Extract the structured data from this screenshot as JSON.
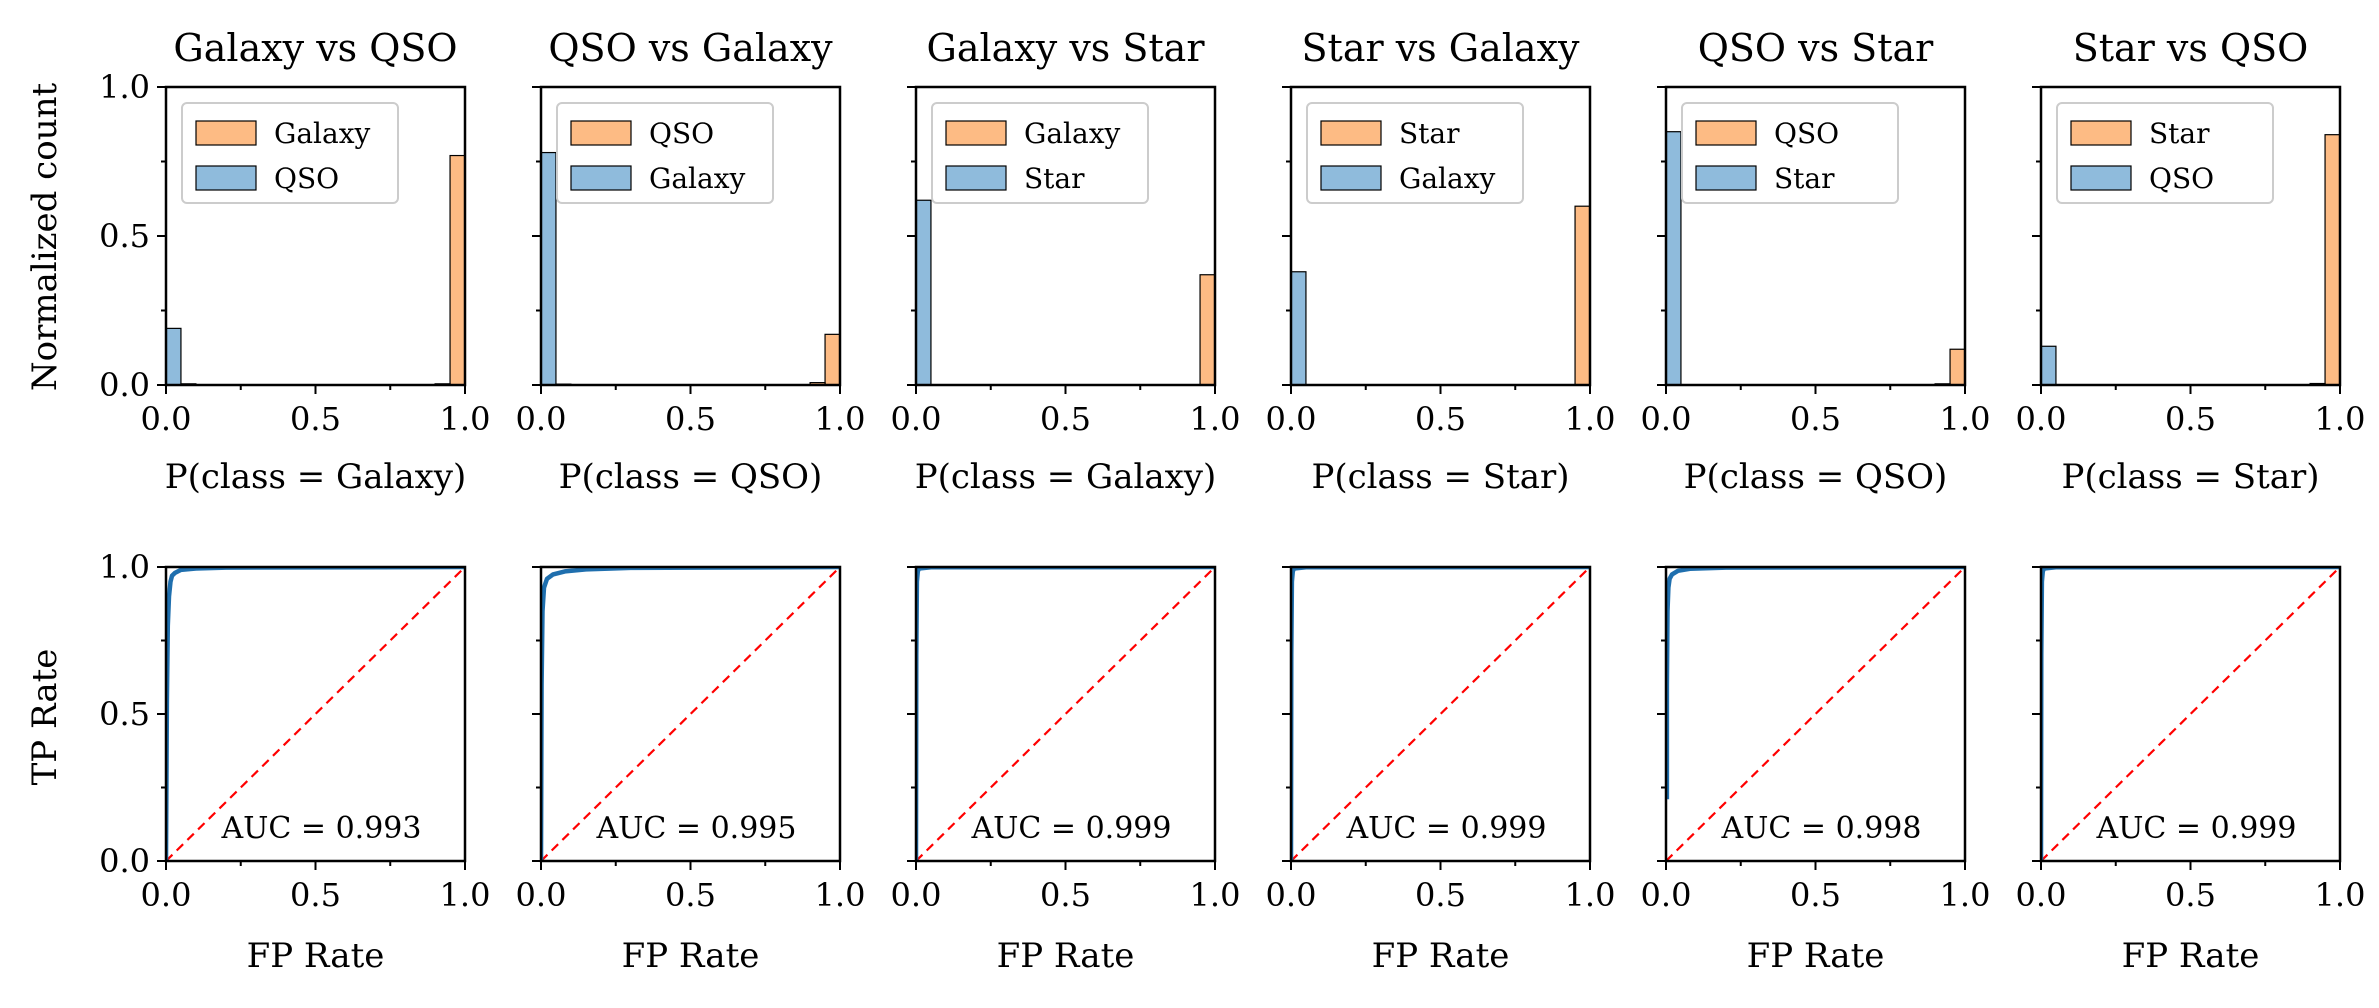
{
  "figure": {
    "colors": {
      "positive": "#fdbb84",
      "negative": "#8fbbdc",
      "roc": "#1f6fae",
      "diagonal": "#ff0000",
      "edge": "#000000"
    },
    "shared_labels": {
      "hist_ylabel": "Normalized count",
      "roc_ylabel": "TP Rate",
      "roc_xlabel": "FP Rate"
    }
  },
  "chart_data": [
    {
      "type": "bar",
      "title": "Galaxy vs QSO",
      "xlabel": "P(class = Galaxy)",
      "ylabel": "Normalized count",
      "xlim": [
        0,
        1
      ],
      "ylim": [
        0,
        1
      ],
      "xticks": [
        "0.0",
        "0.5",
        "1.0"
      ],
      "yticks": [
        "0.0",
        "0.5",
        "1.0"
      ],
      "legend": {
        "position": "top-left",
        "entries": [
          "Galaxy",
          "QSO"
        ]
      },
      "series": [
        {
          "name": "Galaxy",
          "color": "#fdbb84",
          "bins": [
            [
              0.95,
              0.77
            ],
            [
              0.9,
              0.004
            ]
          ]
        },
        {
          "name": "QSO",
          "color": "#8fbbdc",
          "bins": [
            [
              0.0,
              0.19
            ],
            [
              0.05,
              0.004
            ]
          ]
        }
      ]
    },
    {
      "type": "bar",
      "title": "QSO vs Galaxy",
      "xlabel": "P(class = QSO)",
      "ylabel": "",
      "xlim": [
        0,
        1
      ],
      "ylim": [
        0,
        1
      ],
      "xticks": [
        "0.0",
        "0.5",
        "1.0"
      ],
      "yticks": [],
      "legend": {
        "position": "top-left",
        "entries": [
          "QSO",
          "Galaxy"
        ]
      },
      "series": [
        {
          "name": "QSO",
          "color": "#fdbb84",
          "bins": [
            [
              0.95,
              0.17
            ],
            [
              0.9,
              0.008
            ]
          ]
        },
        {
          "name": "Galaxy",
          "color": "#8fbbdc",
          "bins": [
            [
              0.0,
              0.78
            ],
            [
              0.05,
              0.003
            ]
          ]
        }
      ]
    },
    {
      "type": "bar",
      "title": "Galaxy vs Star",
      "xlabel": "P(class = Galaxy)",
      "ylabel": "",
      "xlim": [
        0,
        1
      ],
      "ylim": [
        0,
        1
      ],
      "xticks": [
        "0.0",
        "0.5",
        "1.0"
      ],
      "yticks": [],
      "legend": {
        "position": "top-left",
        "entries": [
          "Galaxy",
          "Star"
        ]
      },
      "series": [
        {
          "name": "Galaxy",
          "color": "#fdbb84",
          "bins": [
            [
              0.95,
              0.37
            ]
          ]
        },
        {
          "name": "Star",
          "color": "#8fbbdc",
          "bins": [
            [
              0.0,
              0.62
            ]
          ]
        }
      ]
    },
    {
      "type": "bar",
      "title": "Star vs Galaxy",
      "xlabel": "P(class = Star)",
      "ylabel": "",
      "xlim": [
        0,
        1
      ],
      "ylim": [
        0,
        1
      ],
      "xticks": [
        "0.0",
        "0.5",
        "1.0"
      ],
      "yticks": [],
      "legend": {
        "position": "top-left",
        "entries": [
          "Star",
          "Galaxy"
        ]
      },
      "series": [
        {
          "name": "Star",
          "color": "#fdbb84",
          "bins": [
            [
              0.95,
              0.6
            ]
          ]
        },
        {
          "name": "Galaxy",
          "color": "#8fbbdc",
          "bins": [
            [
              0.0,
              0.38
            ]
          ]
        }
      ]
    },
    {
      "type": "bar",
      "title": "QSO vs Star",
      "xlabel": "P(class = QSO)",
      "ylabel": "",
      "xlim": [
        0,
        1
      ],
      "ylim": [
        0,
        1
      ],
      "xticks": [
        "0.0",
        "0.5",
        "1.0"
      ],
      "yticks": [],
      "legend": {
        "position": "top-left",
        "entries": [
          "QSO",
          "Star"
        ]
      },
      "series": [
        {
          "name": "QSO",
          "color": "#fdbb84",
          "bins": [
            [
              0.95,
              0.12
            ],
            [
              0.9,
              0.004
            ]
          ]
        },
        {
          "name": "Star",
          "color": "#8fbbdc",
          "bins": [
            [
              0.0,
              0.85
            ]
          ]
        }
      ]
    },
    {
      "type": "bar",
      "title": "Star vs QSO",
      "xlabel": "P(class = Star)",
      "ylabel": "",
      "xlim": [
        0,
        1
      ],
      "ylim": [
        0,
        1
      ],
      "xticks": [
        "0.0",
        "0.5",
        "1.0"
      ],
      "yticks": [],
      "legend": {
        "position": "top-left",
        "entries": [
          "Star",
          "QSO"
        ]
      },
      "series": [
        {
          "name": "Star",
          "color": "#fdbb84",
          "bins": [
            [
              0.95,
              0.84
            ],
            [
              0.9,
              0.005
            ]
          ]
        },
        {
          "name": "QSO",
          "color": "#8fbbdc",
          "bins": [
            [
              0.0,
              0.13
            ]
          ]
        }
      ]
    },
    {
      "type": "line",
      "title": "",
      "xlabel": "FP Rate",
      "ylabel": "TP Rate",
      "xlim": [
        0,
        1
      ],
      "ylim": [
        0,
        1
      ],
      "xticks": [
        "0.0",
        "0.5",
        "1.0"
      ],
      "yticks": [
        "0.0",
        "0.5",
        "1.0"
      ],
      "annotation": "AUC = 0.993",
      "series": [
        {
          "name": "ROC",
          "x": [
            0,
            0.003,
            0.006,
            0.01,
            0.015,
            0.02,
            0.03,
            0.05,
            0.1,
            0.2,
            1
          ],
          "y": [
            0,
            0.55,
            0.8,
            0.9,
            0.95,
            0.97,
            0.98,
            0.99,
            0.995,
            0.998,
            1
          ]
        },
        {
          "name": "Chance",
          "x": [
            0,
            1
          ],
          "y": [
            0,
            1
          ],
          "style": "dashed"
        }
      ]
    },
    {
      "type": "line",
      "title": "",
      "xlabel": "FP Rate",
      "ylabel": "",
      "xlim": [
        0,
        1
      ],
      "ylim": [
        0,
        1
      ],
      "xticks": [
        "0.0",
        "0.5",
        "1.0"
      ],
      "yticks": [],
      "annotation": "AUC = 0.995",
      "series": [
        {
          "name": "ROC",
          "x": [
            0,
            0.002,
            0.005,
            0.01,
            0.02,
            0.04,
            0.08,
            0.15,
            0.3,
            1
          ],
          "y": [
            0,
            0.6,
            0.85,
            0.93,
            0.96,
            0.975,
            0.985,
            0.992,
            0.997,
            1
          ]
        },
        {
          "name": "Chance",
          "x": [
            0,
            1
          ],
          "y": [
            0,
            1
          ],
          "style": "dashed"
        }
      ]
    },
    {
      "type": "line",
      "title": "",
      "xlabel": "FP Rate",
      "ylabel": "",
      "xlim": [
        0,
        1
      ],
      "ylim": [
        0,
        1
      ],
      "xticks": [
        "0.0",
        "0.5",
        "1.0"
      ],
      "yticks": [],
      "annotation": "AUC = 0.999",
      "series": [
        {
          "name": "ROC",
          "x": [
            0,
            0.001,
            0.003,
            0.006,
            0.01,
            0.05,
            1
          ],
          "y": [
            0,
            0.7,
            0.95,
            0.985,
            0.995,
            0.999,
            1
          ]
        },
        {
          "name": "Chance",
          "x": [
            0,
            1
          ],
          "y": [
            0,
            1
          ],
          "style": "dashed"
        }
      ]
    },
    {
      "type": "line",
      "title": "",
      "xlabel": "FP Rate",
      "ylabel": "",
      "xlim": [
        0,
        1
      ],
      "ylim": [
        0,
        1
      ],
      "xticks": [
        "0.0",
        "0.5",
        "1.0"
      ],
      "yticks": [],
      "annotation": "AUC = 0.999",
      "series": [
        {
          "name": "ROC",
          "x": [
            0,
            0.001,
            0.003,
            0.006,
            0.01,
            0.05,
            1
          ],
          "y": [
            0,
            0.7,
            0.95,
            0.985,
            0.995,
            0.999,
            1
          ]
        },
        {
          "name": "Chance",
          "x": [
            0,
            1
          ],
          "y": [
            0,
            1
          ],
          "style": "dashed"
        }
      ]
    },
    {
      "type": "line",
      "title": "",
      "xlabel": "FP Rate",
      "ylabel": "",
      "xlim": [
        0,
        1
      ],
      "ylim": [
        0,
        1
      ],
      "xticks": [
        "0.0",
        "0.5",
        "1.0"
      ],
      "yticks": [],
      "annotation": "AUC = 0.998",
      "series": [
        {
          "name": "ROC",
          "x": [
            0.003,
            0.003,
            0.005,
            0.008,
            0.012,
            0.02,
            0.04,
            0.08,
            0.2,
            1
          ],
          "y": [
            0.21,
            0.6,
            0.85,
            0.93,
            0.96,
            0.975,
            0.987,
            0.994,
            0.998,
            1
          ]
        },
        {
          "name": "Chance",
          "x": [
            0,
            1
          ],
          "y": [
            0,
            1
          ],
          "style": "dashed"
        }
      ]
    },
    {
      "type": "line",
      "title": "",
      "xlabel": "FP Rate",
      "ylabel": "",
      "xlim": [
        0,
        1
      ],
      "ylim": [
        0,
        1
      ],
      "xticks": [
        "0.0",
        "0.5",
        "1.0"
      ],
      "yticks": [],
      "annotation": "AUC = 0.999",
      "series": [
        {
          "name": "ROC",
          "x": [
            0,
            0.001,
            0.003,
            0.006,
            0.01,
            0.05,
            1
          ],
          "y": [
            0,
            0.7,
            0.95,
            0.985,
            0.995,
            0.999,
            1
          ]
        },
        {
          "name": "Chance",
          "x": [
            0,
            1
          ],
          "y": [
            0,
            1
          ],
          "style": "dashed"
        }
      ]
    }
  ]
}
